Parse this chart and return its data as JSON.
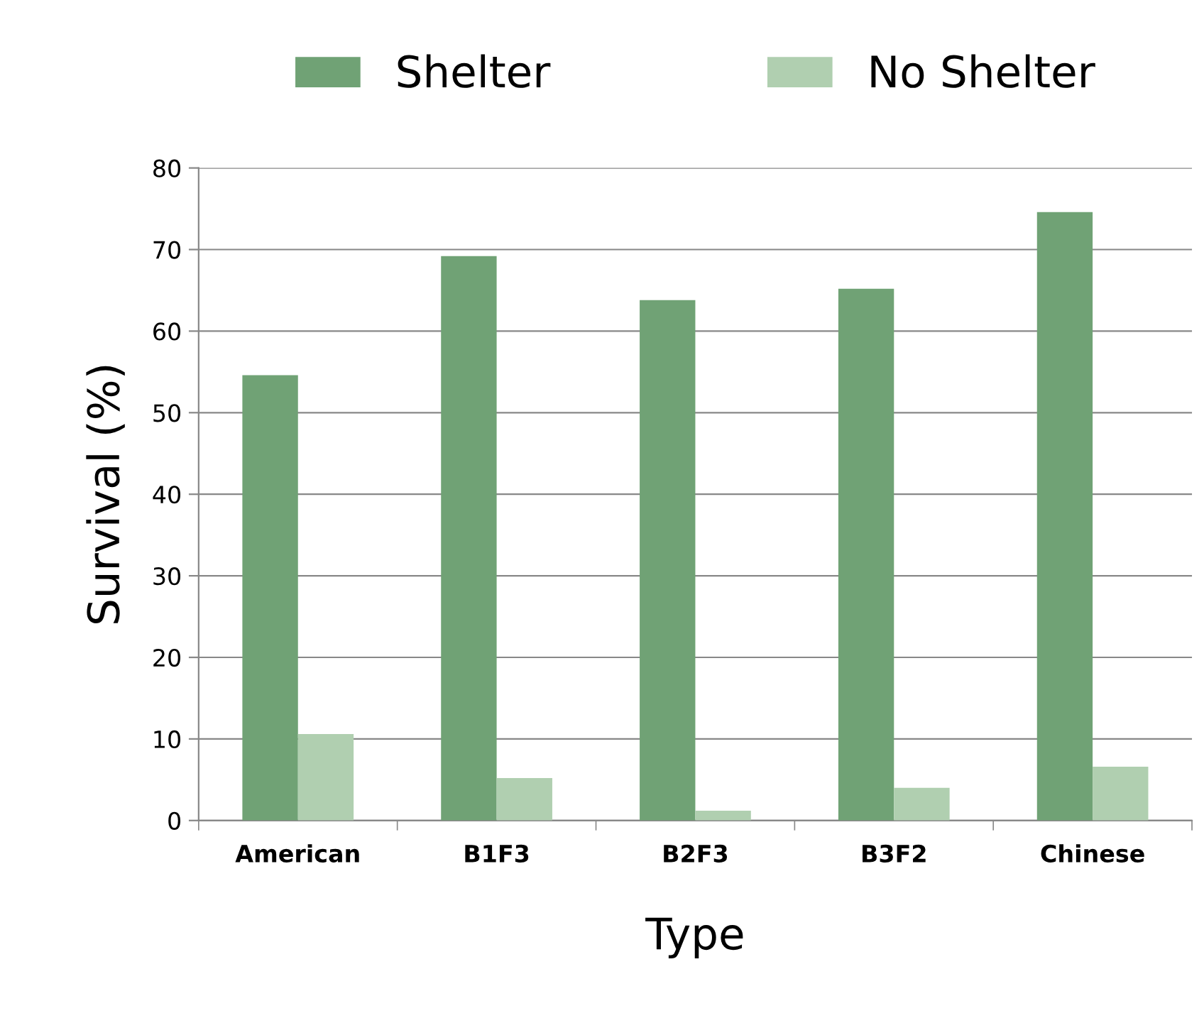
{
  "chart_data": {
    "type": "bar",
    "xlabel": "Type",
    "ylabel": "Survival (%)",
    "categories": [
      "American",
      "B1F3",
      "B2F3",
      "B3F2",
      "Chinese"
    ],
    "series": [
      {
        "name": "Shelter",
        "color": "#70a275",
        "values": [
          54.6,
          69.2,
          63.8,
          65.2,
          74.6
        ]
      },
      {
        "name": "No Shelter",
        "color": "#b0cfb0",
        "values": [
          10.6,
          5.2,
          1.2,
          4.0,
          6.6
        ]
      }
    ],
    "ylim": [
      0,
      80
    ],
    "yticks": [
      0,
      10,
      20,
      30,
      40,
      50,
      60,
      70,
      80
    ],
    "grid": "y",
    "legend": "top"
  }
}
